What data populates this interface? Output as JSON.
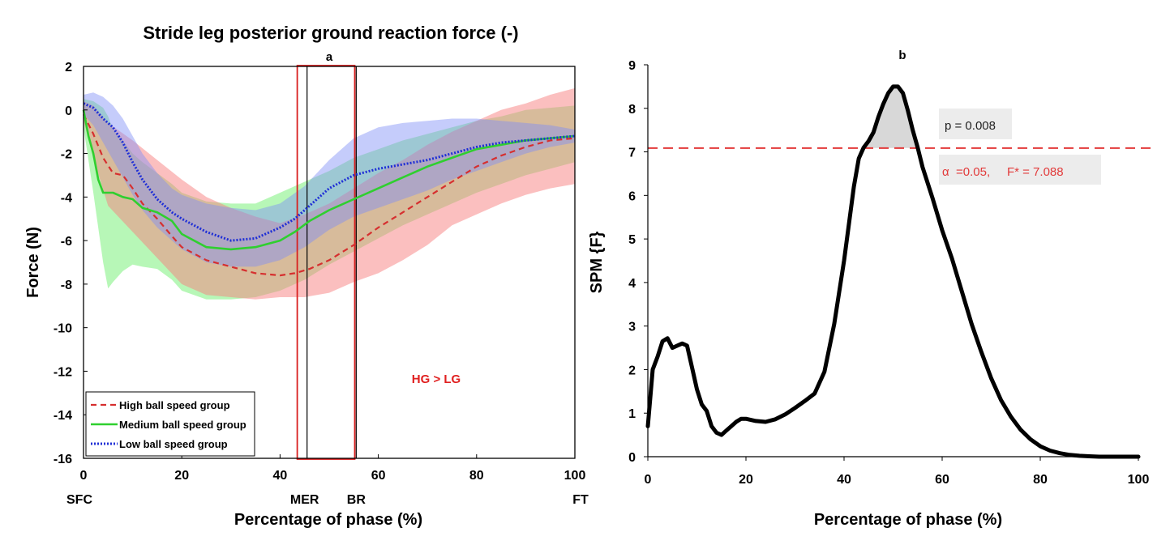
{
  "chart_data": [
    {
      "panel_label": "a",
      "type": "line",
      "title": "Stride leg posterior ground reaction force (-)",
      "xlabel": "Percentage of phase (%)",
      "ylabel": "Force (N)",
      "xlim": [
        0,
        100
      ],
      "ylim": [
        -16,
        2
      ],
      "xticks": [
        "0",
        "20",
        "40",
        "60",
        "80",
        "100"
      ],
      "yticks": [
        "2",
        "0",
        "-2",
        "-4",
        "-6",
        "-8",
        "-10",
        "-12",
        "-14",
        "-16"
      ],
      "event_labels": [
        {
          "text": "SFC",
          "x": 0
        },
        {
          "text": "MER",
          "x": 45
        },
        {
          "text": "BR",
          "x": 55.5
        },
        {
          "text": "FT",
          "x": 100
        }
      ],
      "event_lines": [
        45.5,
        55.5
      ],
      "significant_region": {
        "start": 43.5,
        "end": 55.2
      },
      "annotation": "HG > LG",
      "legend_placement": "bottom-left",
      "colors": {
        "high": "#d62f2f",
        "medium": "#2fcf2f",
        "low": "#1f2fd6",
        "band_high": "#f77f7f",
        "band_medium": "#6ff06f",
        "band_low": "#7f8ff7"
      },
      "series": [
        {
          "name": "High ball speed group",
          "style": "dashed",
          "x": [
            0,
            2,
            4,
            6,
            8,
            10,
            12,
            15,
            18,
            20,
            25,
            30,
            35,
            40,
            43,
            46,
            50,
            55,
            60,
            65,
            70,
            75,
            80,
            85,
            90,
            95,
            100
          ],
          "y": [
            -0.2,
            -1.1,
            -2.2,
            -2.9,
            -3.0,
            -3.6,
            -4.3,
            -5.0,
            -5.8,
            -6.3,
            -6.9,
            -7.2,
            -7.5,
            -7.6,
            -7.5,
            -7.3,
            -6.9,
            -6.2,
            -5.4,
            -4.7,
            -4.0,
            -3.3,
            -2.6,
            -2.1,
            -1.7,
            -1.4,
            -1.3
          ]
        },
        {
          "name": "Medium ball speed group",
          "style": "solid",
          "x": [
            0,
            1,
            2,
            3,
            4,
            6,
            8,
            10,
            12,
            15,
            18,
            20,
            25,
            30,
            35,
            40,
            43,
            46,
            50,
            55,
            60,
            65,
            70,
            75,
            80,
            85,
            90,
            95,
            100
          ],
          "y": [
            0,
            -1.2,
            -2.0,
            -3.2,
            -3.8,
            -3.8,
            -4.0,
            -4.1,
            -4.5,
            -4.7,
            -5.1,
            -5.7,
            -6.3,
            -6.4,
            -6.3,
            -6.0,
            -5.6,
            -5.1,
            -4.6,
            -4.1,
            -3.6,
            -3.1,
            -2.6,
            -2.2,
            -1.8,
            -1.6,
            -1.4,
            -1.3,
            -1.2
          ]
        },
        {
          "name": "Low ball speed group",
          "style": "dotted",
          "x": [
            0,
            2,
            4,
            6,
            8,
            10,
            12,
            15,
            18,
            20,
            25,
            30,
            35,
            40,
            43,
            46,
            50,
            55,
            60,
            65,
            70,
            75,
            80,
            85,
            90,
            95,
            100
          ],
          "y": [
            0.3,
            0.1,
            -0.4,
            -0.8,
            -1.5,
            -2.4,
            -3.2,
            -4.1,
            -4.7,
            -5.0,
            -5.6,
            -6.0,
            -5.9,
            -5.4,
            -5.0,
            -4.4,
            -3.6,
            -3.0,
            -2.7,
            -2.5,
            -2.3,
            -2.0,
            -1.7,
            -1.5,
            -1.4,
            -1.3,
            -1.2
          ]
        }
      ],
      "bands": [
        {
          "name": "band-high",
          "x": [
            0,
            2,
            5,
            10,
            15,
            20,
            25,
            30,
            35,
            40,
            45,
            50,
            55,
            60,
            65,
            70,
            75,
            80,
            85,
            90,
            95,
            100
          ],
          "upper": [
            0.4,
            0.2,
            -0.6,
            -1.4,
            -2.3,
            -3.2,
            -4.0,
            -4.5,
            -4.9,
            -5.2,
            -4.8,
            -4.3,
            -3.6,
            -2.9,
            -2.3,
            -1.6,
            -1.0,
            -0.5,
            0.0,
            0.3,
            0.7,
            1.0
          ],
          "lower": [
            -0.5,
            -2.2,
            -4.4,
            -5.6,
            -6.8,
            -8.0,
            -8.5,
            -8.6,
            -8.7,
            -8.6,
            -8.6,
            -8.4,
            -7.9,
            -7.5,
            -6.9,
            -6.2,
            -5.3,
            -4.8,
            -4.3,
            -3.9,
            -3.6,
            -3.4
          ]
        },
        {
          "name": "band-medium",
          "x": [
            0,
            2,
            4,
            5,
            6,
            8,
            10,
            12,
            15,
            18,
            20,
            25,
            30,
            35,
            40,
            45,
            50,
            55,
            60,
            65,
            70,
            75,
            80,
            85,
            90,
            95,
            100
          ],
          "upper": [
            0.5,
            0.4,
            0.1,
            -0.3,
            -0.9,
            -1.4,
            -2.0,
            -2.4,
            -2.9,
            -3.4,
            -3.8,
            -4.2,
            -4.3,
            -4.3,
            -3.8,
            -3.3,
            -2.8,
            -2.2,
            -1.8,
            -1.4,
            -1.1,
            -0.8,
            -0.5,
            -0.3,
            0.0,
            0.1,
            0.2
          ],
          "lower": [
            -0.8,
            -3.8,
            -7.0,
            -8.2,
            -7.9,
            -7.4,
            -7.1,
            -7.2,
            -7.3,
            -7.8,
            -8.3,
            -8.7,
            -8.7,
            -8.6,
            -8.3,
            -7.8,
            -7.1,
            -6.5,
            -5.9,
            -5.3,
            -4.8,
            -4.3,
            -3.8,
            -3.4,
            -3.0,
            -2.7,
            -2.4
          ]
        },
        {
          "name": "band-low",
          "x": [
            0,
            2,
            4,
            6,
            8,
            10,
            12,
            15,
            18,
            20,
            25,
            30,
            35,
            40,
            45,
            50,
            55,
            60,
            65,
            70,
            75,
            80,
            85,
            90,
            95,
            100
          ],
          "upper": [
            0.7,
            0.8,
            0.6,
            0.2,
            -0.4,
            -1.2,
            -2.0,
            -2.9,
            -3.6,
            -3.9,
            -4.3,
            -4.5,
            -4.6,
            -4.3,
            -3.5,
            -2.3,
            -1.3,
            -0.8,
            -0.6,
            -0.5,
            -0.4,
            -0.4,
            -0.5,
            -0.6,
            -0.7,
            -0.9
          ],
          "lower": [
            -0.2,
            -0.7,
            -1.5,
            -2.3,
            -3.1,
            -3.9,
            -4.6,
            -5.4,
            -6.0,
            -6.4,
            -7.0,
            -7.2,
            -7.2,
            -6.9,
            -6.3,
            -5.5,
            -4.9,
            -4.5,
            -4.1,
            -3.7,
            -3.2,
            -2.8,
            -2.4,
            -2.0,
            -1.7,
            -1.5
          ]
        }
      ]
    },
    {
      "panel_label": "b",
      "type": "line",
      "xlabel": "Percentage of phase (%)",
      "ylabel": "SPM {F}",
      "xlim": [
        0,
        100
      ],
      "ylim": [
        0,
        9
      ],
      "xticks": [
        "0",
        "20",
        "40",
        "60",
        "80",
        "100"
      ],
      "yticks": [
        "0",
        "1",
        "2",
        "3",
        "4",
        "5",
        "6",
        "7",
        "8",
        "9"
      ],
      "threshold": 7.088,
      "p_text": "p = 0.008",
      "alpha_text": "α  =0.05,     F* = 7.088",
      "colors": {
        "curve": "#000000",
        "threshold": "#e23a3a",
        "cluster": "#d8d8d8",
        "label_box": "#ececec"
      },
      "series": [
        {
          "x": [
            0,
            1,
            2,
            3,
            4,
            5,
            6,
            7,
            8,
            9,
            10,
            11,
            12,
            13,
            14,
            15,
            16,
            17,
            18,
            19,
            20,
            22,
            24,
            26,
            28,
            30,
            32,
            34,
            36,
            38,
            40,
            42,
            43,
            44,
            45,
            46,
            47,
            48,
            49,
            50,
            51,
            52,
            53,
            54,
            55,
            56,
            58,
            60,
            62,
            64,
            66,
            68,
            70,
            72,
            74,
            76,
            78,
            80,
            82,
            84,
            86,
            88,
            90,
            92,
            95,
            100
          ],
          "y": [
            0.7,
            2.0,
            2.3,
            2.65,
            2.72,
            2.5,
            2.55,
            2.6,
            2.55,
            2.05,
            1.55,
            1.2,
            1.05,
            0.7,
            0.55,
            0.5,
            0.6,
            0.7,
            0.8,
            0.87,
            0.87,
            0.82,
            0.8,
            0.86,
            0.97,
            1.12,
            1.28,
            1.45,
            1.95,
            3.05,
            4.5,
            6.2,
            6.85,
            7.1,
            7.25,
            7.45,
            7.8,
            8.1,
            8.35,
            8.5,
            8.5,
            8.35,
            7.95,
            7.5,
            7.1,
            6.65,
            5.95,
            5.2,
            4.55,
            3.8,
            3.05,
            2.4,
            1.8,
            1.3,
            0.92,
            0.62,
            0.4,
            0.24,
            0.14,
            0.08,
            0.04,
            0.02,
            0.01,
            0.0,
            0.0,
            0.0
          ]
        }
      ]
    }
  ]
}
